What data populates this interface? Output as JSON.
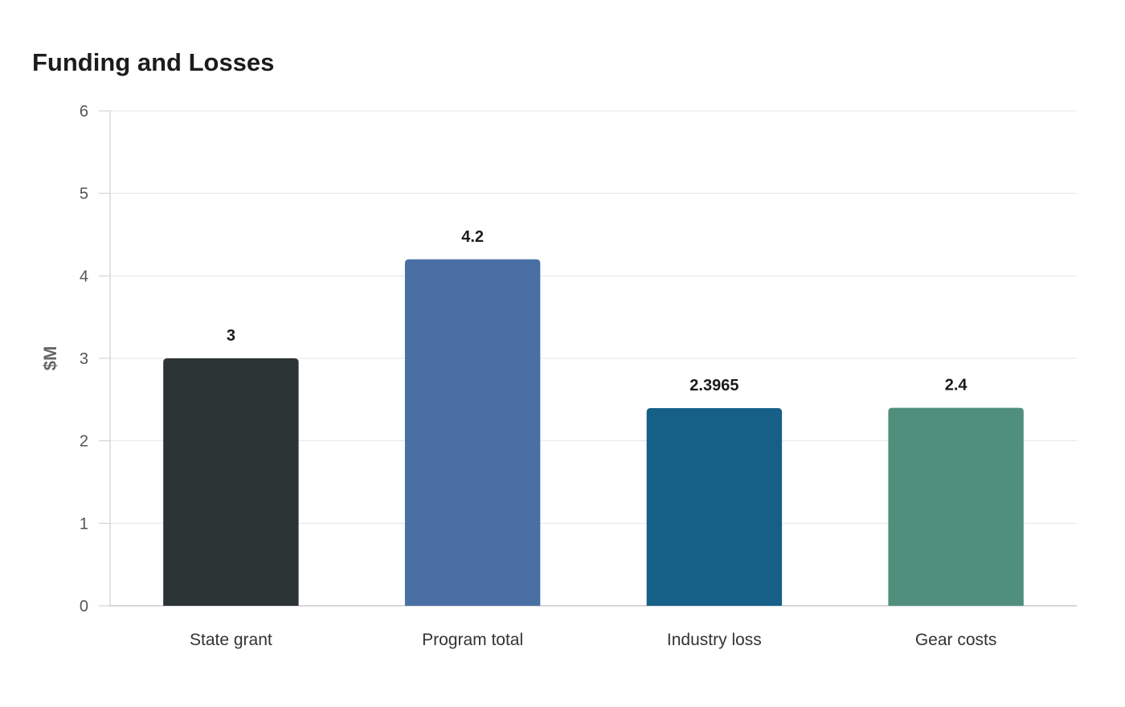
{
  "chart_data": {
    "type": "bar",
    "title": "Funding and Losses",
    "xlabel": "",
    "ylabel": "$M",
    "ylim": [
      0,
      6
    ],
    "yticks": [
      0,
      1,
      2,
      3,
      4,
      5,
      6
    ],
    "grid": true,
    "legend": "none",
    "categories": [
      "State grant",
      "Program total",
      "Industry loss",
      "Gear costs"
    ],
    "values": [
      3,
      4.2,
      2.3965,
      2.4
    ],
    "value_labels": [
      "3",
      "4.2",
      "2.3965",
      "2.4"
    ],
    "colors": [
      "#2d3436",
      "#4a6fa5",
      "#166088",
      "#4f8f7c"
    ]
  }
}
